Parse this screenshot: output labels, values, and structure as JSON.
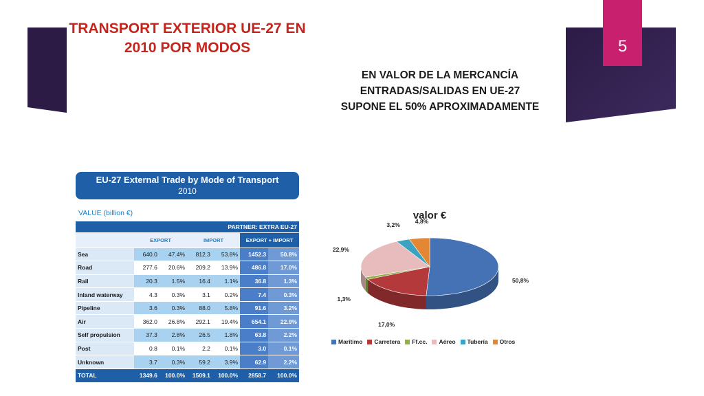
{
  "page_number": "5",
  "slide_title": [
    "TRANSPORT EXTERIOR UE-27 EN",
    "2010 POR MODOS"
  ],
  "subtitle": [
    "EN VALOR DE LA MERCANCÍA",
    "ENTRADAS/SALIDAS EN UE-27",
    "SUPONE EL 50% APROXIMADAMENTE"
  ],
  "colors": {
    "deco": "#2b1b45",
    "page_number_bg": "#c91f6f",
    "title": "#c4261d",
    "table_blue": "#1f5fa8"
  },
  "table": {
    "title": "EU-27 External Trade by Mode of Transport",
    "year": "2010",
    "value_label": "VALUE (billion €)",
    "partner": "PARTNER: EXTRA EU-27",
    "headers": {
      "export": "EXPORT",
      "import": "IMPORT",
      "total": "EXPORT + IMPORT"
    },
    "rows": [
      {
        "mode": "Sea",
        "export": "640.0",
        "export_pct": "47.4%",
        "import": "812.3",
        "import_pct": "53.8%",
        "total": "1452.3",
        "total_pct": "50.8%"
      },
      {
        "mode": "Road",
        "export": "277.6",
        "export_pct": "20.6%",
        "import": "209.2",
        "import_pct": "13.9%",
        "total": "486.8",
        "total_pct": "17.0%"
      },
      {
        "mode": "Rail",
        "export": "20.3",
        "export_pct": "1.5%",
        "import": "16.4",
        "import_pct": "1.1%",
        "total": "36.8",
        "total_pct": "1.3%"
      },
      {
        "mode": "Inland waterway",
        "export": "4.3",
        "export_pct": "0.3%",
        "import": "3.1",
        "import_pct": "0.2%",
        "total": "7.4",
        "total_pct": "0.3%"
      },
      {
        "mode": "Pipeline",
        "export": "3.6",
        "export_pct": "0.3%",
        "import": "88.0",
        "import_pct": "5.8%",
        "total": "91.6",
        "total_pct": "3.2%"
      },
      {
        "mode": "Air",
        "export": "362.0",
        "export_pct": "26.8%",
        "import": "292.1",
        "import_pct": "19.4%",
        "total": "654.1",
        "total_pct": "22.9%"
      },
      {
        "mode": "Self propulsion",
        "export": "37.3",
        "export_pct": "2.8%",
        "import": "26.5",
        "import_pct": "1.8%",
        "total": "63.8",
        "total_pct": "2.2%"
      },
      {
        "mode": "Post",
        "export": "0.8",
        "export_pct": "0.1%",
        "import": "2.2",
        "import_pct": "0.1%",
        "total": "3.0",
        "total_pct": "0.1%"
      },
      {
        "mode": "Unknown",
        "export": "3.7",
        "export_pct": "0.3%",
        "import": "59.2",
        "import_pct": "3.9%",
        "total": "62.9",
        "total_pct": "2.2%"
      }
    ],
    "total": {
      "mode": "TOTAL",
      "export": "1349.6",
      "export_pct": "100.0%",
      "import": "1509.1",
      "import_pct": "100.0%",
      "total": "2858.7",
      "total_pct": "100.0%"
    }
  },
  "chart_data": {
    "type": "pie",
    "title": "valor €",
    "categories": [
      "Marítimo",
      "Carretera",
      "Ff.cc.",
      "Aéreo",
      "Tubería",
      "Otros"
    ],
    "values": [
      50.8,
      17.0,
      1.3,
      22.9,
      3.2,
      4.8
    ],
    "value_labels": [
      "50,8%",
      "17,0%",
      "1,3%",
      "22,9%",
      "3,2%",
      "4,8%"
    ],
    "colors": [
      "#4472b4",
      "#b3393a",
      "#8fb04a",
      "#e8bcbc",
      "#3aa3c1",
      "#e48734"
    ],
    "legend_position": "bottom"
  }
}
